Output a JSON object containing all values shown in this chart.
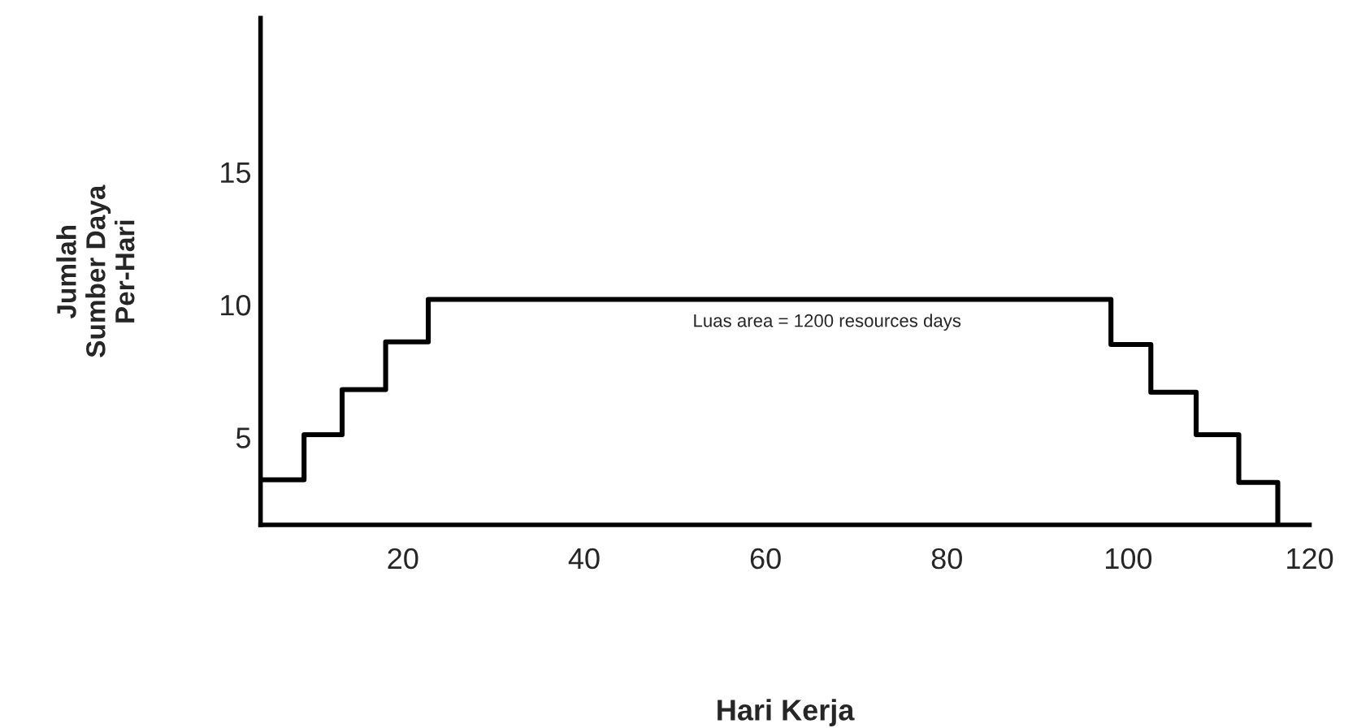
{
  "chart_data": {
    "type": "step",
    "xlabel": "Hari Kerja",
    "ylabel": "Jumlah\nSumber Daya\nPer-Hari",
    "annotations": [
      "Luas area = 1200 resources days"
    ],
    "x": [
      4.3,
      9.1,
      13.3,
      18.1,
      22.8,
      98.1,
      102.5,
      107.5,
      112.2,
      116.5
    ],
    "series": [
      {
        "color": "#000000",
        "values": [
          3.4,
          5.1,
          6.8,
          8.6,
          10.2,
          8.5,
          6.7,
          5.1,
          3.3,
          1.7
        ]
      }
    ],
    "xlim": [
      4.3,
      120
    ],
    "ylim": [
      1.7,
      20.8
    ],
    "xticks": [
      20,
      40,
      60,
      80,
      100,
      120
    ],
    "yticks": [
      5,
      10,
      15
    ],
    "grid": false,
    "legend": false
  }
}
